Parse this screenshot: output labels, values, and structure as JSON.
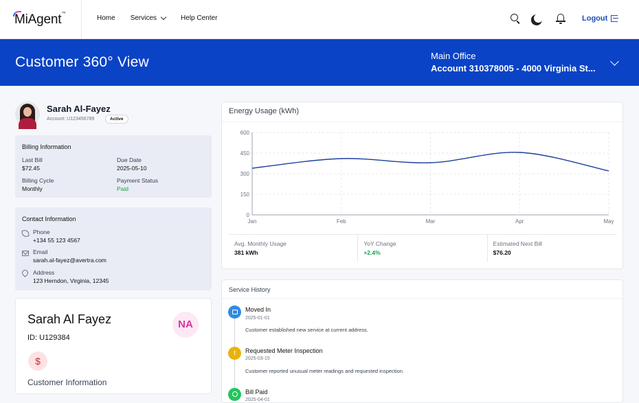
{
  "header": {
    "logo_text": "MiAgent",
    "logo_tm": "™",
    "nav": [
      {
        "label": "Home"
      },
      {
        "label": "Services"
      },
      {
        "label": "Help Center"
      }
    ],
    "icons": [
      "search-icon",
      "moon-icon",
      "bell-icon"
    ],
    "logout_label": "Logout"
  },
  "banner": {
    "title": "Customer 360° View",
    "office_label": "Main Office",
    "account_label": "Account 310378005 - 4000 Virginia St..."
  },
  "profile": {
    "name": "Sarah Al-Fayez",
    "account": "Account: U123456789",
    "status": "Active"
  },
  "billing": {
    "title": "Billing Information",
    "last_bill_label": "Last Bill",
    "last_bill_value": "$72.45",
    "due_date_label": "Due Date",
    "due_date_value": "2025-05-10",
    "cycle_label": "Billing Cycle",
    "cycle_value": "Monthly",
    "status_label": "Payment Status",
    "status_value": "Paid"
  },
  "contact": {
    "title": "Contact Information",
    "phone_label": "Phone",
    "phone_value": "+134 55 123 4567",
    "email_label": "Email",
    "email_value": "sarah.al-fayez@avertra.com",
    "address_label": "Address",
    "address_value": "123 Herndon, Virginia, 12345"
  },
  "customer_card": {
    "name": "Sarah Al Fayez",
    "id": "ID: U129384",
    "initials": "NA",
    "dollar": "$",
    "subtitle": "Customer Information"
  },
  "energy": {
    "title": "Energy Usage (kWh)",
    "stats": [
      {
        "label": "Avg. Monthly Usage",
        "value": "381 kWh"
      },
      {
        "label": "YoY Change",
        "value": "+2.4%"
      },
      {
        "label": "Estimated Next Bill",
        "value": "$76.20"
      }
    ]
  },
  "chart_data": {
    "type": "line",
    "categories": [
      "Jan",
      "Feb",
      "Mar",
      "Apr",
      "May"
    ],
    "values": [
      340,
      410,
      380,
      455,
      320
    ],
    "yticks": [
      0,
      150,
      300,
      450,
      600
    ],
    "ylim": [
      0,
      600
    ],
    "grid": true,
    "color": "#1d3f9e"
  },
  "history": {
    "title": "Service History",
    "items": [
      {
        "title": "Moved In",
        "date": "2025-01-01",
        "desc": "Customer established new service at current address.",
        "icon": "calendar-icon"
      },
      {
        "title": "Requested Meter Inspection",
        "date": "2025-03-15",
        "desc": "Customer reported unusual meter readings and requested inspection.",
        "icon": "warning-icon"
      },
      {
        "title": "Bill Paid",
        "date": "2025-04-01",
        "desc": "",
        "icon": "check-icon"
      }
    ]
  }
}
